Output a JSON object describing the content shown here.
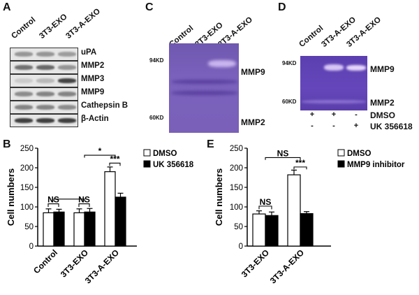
{
  "panels": {
    "A": {
      "letter": "A",
      "lanes": [
        "Control",
        "3T3-EXO",
        "3T3-A-EXO"
      ],
      "blots": [
        "uPA",
        "MMP2",
        "MMP3",
        "MMP9",
        "Cathepsin B",
        "β-Actin"
      ]
    },
    "C": {
      "letter": "C",
      "lanes": [
        "Control",
        "3T3-EXO",
        "3T3-A-EXO"
      ],
      "marker_high": "94KD",
      "marker_low": "60KD",
      "band_high": "MMP9",
      "band_low": "MMP2"
    },
    "D": {
      "letter": "D",
      "lanes": [
        "Control",
        "3T3-A-EXO",
        "3T3-A-EXO"
      ],
      "marker_high": "94KD",
      "marker_low": "60KD",
      "band_high": "MMP9",
      "band_low": "MMP2",
      "row1_label": "DMSO",
      "row2_label": "UK 356618",
      "row1_signs": [
        "+",
        "+",
        "-"
      ],
      "row2_signs": [
        "-",
        "-",
        "+"
      ]
    },
    "B": {
      "letter": "B",
      "sig_top": "*",
      "sig_pair": "***",
      "ns_label": "NS"
    },
    "E": {
      "letter": "E",
      "sig_top": "NS",
      "sig_pair": "***",
      "ns_label": "NS"
    }
  },
  "chart_data": [
    {
      "type": "bar",
      "panel": "B",
      "categories": [
        "Control",
        "3T3-EXO",
        "3T3-A-EXO"
      ],
      "series": [
        {
          "name": "DMSO",
          "values": [
            85,
            85,
            190
          ],
          "errors": [
            10,
            10,
            12
          ],
          "color": "#ffffff"
        },
        {
          "name": "UK 356618",
          "values": [
            87,
            87,
            125
          ],
          "errors": [
            7,
            9,
            10
          ],
          "color": "#000000"
        }
      ],
      "ylabel": "Cell numbers",
      "ylim": [
        0,
        250
      ],
      "yticks": [
        0,
        50,
        100,
        150,
        200,
        250
      ],
      "legend": "top-right"
    },
    {
      "type": "bar",
      "panel": "E",
      "categories": [
        "3T3-EXO",
        "3T3-A-EXO"
      ],
      "series": [
        {
          "name": "DMSO",
          "values": [
            82,
            182
          ],
          "errors": [
            8,
            12
          ],
          "color": "#ffffff"
        },
        {
          "name": "MMP9 inhibitor",
          "values": [
            78,
            83
          ],
          "errors": [
            9,
            5
          ],
          "color": "#000000"
        }
      ],
      "ylabel": "Cell numbers",
      "ylim": [
        0,
        250
      ],
      "yticks": [
        0,
        50,
        100,
        150,
        200,
        250
      ],
      "legend": "top-right"
    }
  ]
}
